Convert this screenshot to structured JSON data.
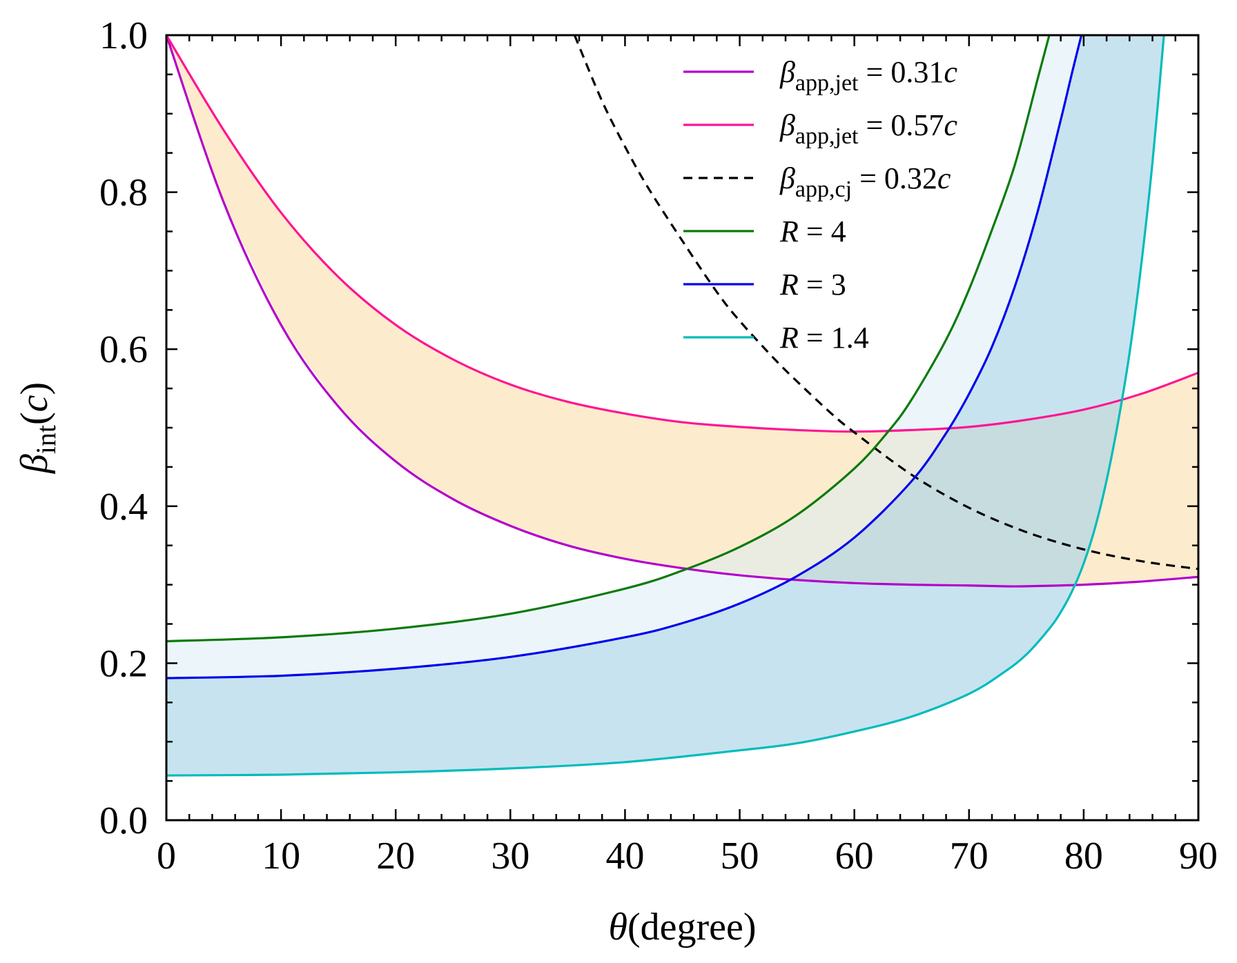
{
  "chart_data": {
    "type": "line",
    "title": "",
    "xlabel": {
      "symbol": "θ",
      "text": "(degree)"
    },
    "ylabel": {
      "symbol": "β",
      "sub": "int",
      "text": "(",
      "unit": "c",
      "close": ")"
    },
    "xlim": [
      0,
      90
    ],
    "ylim": [
      0,
      1.0
    ],
    "x_ticks": [
      "0",
      "10",
      "20",
      "30",
      "40",
      "50",
      "60",
      "70",
      "80",
      "90"
    ],
    "y_ticks": [
      "0.0",
      "0.2",
      "0.4",
      "0.6",
      "0.8",
      "1.0"
    ],
    "grid": false,
    "legend_position": "top-right",
    "series": [
      {
        "name": "β_app,jet = 0.31c",
        "legend": {
          "sym": "β",
          "sub": "app,jet",
          "eq": " = 0.31",
          "unit": "c"
        },
        "color": "#b300cc",
        "dash": "solid",
        "x": [
          0,
          5,
          10,
          15,
          20,
          25,
          30,
          35,
          40,
          45,
          50,
          55,
          60,
          65,
          70,
          73,
          75,
          80,
          85,
          90
        ],
        "y": [
          1.0,
          0.787,
          0.631,
          0.527,
          0.457,
          0.409,
          0.375,
          0.35,
          0.333,
          0.321,
          0.312,
          0.306,
          0.302,
          0.3,
          0.299,
          0.298,
          0.298,
          0.3,
          0.304,
          0.31
        ]
      },
      {
        "name": "β_app,jet = 0.57c",
        "legend": {
          "sym": "β",
          "sub": "app,jet",
          "eq": " = 0.57",
          "unit": "c"
        },
        "color": "#ff1493",
        "dash": "solid",
        "x": [
          0,
          5,
          10,
          15,
          20,
          25,
          30,
          35,
          40,
          45,
          50,
          55,
          60,
          65,
          70,
          75,
          80,
          85,
          90
        ],
        "y": [
          1.0,
          0.879,
          0.774,
          0.692,
          0.631,
          0.587,
          0.555,
          0.533,
          0.518,
          0.507,
          0.501,
          0.497,
          0.495,
          0.497,
          0.501,
          0.51,
          0.523,
          0.543,
          0.57
        ]
      },
      {
        "name": "β_app,cj = 0.32c",
        "legend": {
          "sym": "β",
          "sub": "app,cj",
          "eq": " = 0.32",
          "unit": "c"
        },
        "color": "#000000",
        "dash": "dashed",
        "x": [
          35.6,
          38,
          40,
          42,
          45,
          48,
          50,
          53,
          55,
          58,
          60,
          65,
          70,
          75,
          80,
          85,
          90
        ],
        "y": [
          1.0,
          0.916,
          0.858,
          0.806,
          0.738,
          0.673,
          0.636,
          0.588,
          0.559,
          0.518,
          0.494,
          0.44,
          0.398,
          0.367,
          0.345,
          0.33,
          0.32
        ]
      },
      {
        "name": "R = 4",
        "legend": {
          "sym": "R",
          "sub": "",
          "eq": " = 4",
          "unit": ""
        },
        "color": "#0a7a0a",
        "dash": "solid",
        "x": [
          0,
          10,
          20,
          30,
          40,
          45,
          50,
          55,
          60,
          63,
          65,
          68,
          70,
          72,
          74,
          76,
          77
        ],
        "y": [
          0.228,
          0.233,
          0.244,
          0.263,
          0.295,
          0.318,
          0.348,
          0.389,
          0.448,
          0.496,
          0.536,
          0.612,
          0.676,
          0.752,
          0.835,
          0.945,
          1.0
        ]
      },
      {
        "name": "R = 3",
        "legend": {
          "sym": "R",
          "sub": "",
          "eq": " = 3",
          "unit": ""
        },
        "color": "#0000ee",
        "dash": "solid",
        "x": [
          0,
          10,
          20,
          30,
          40,
          45,
          50,
          55,
          60,
          65,
          68,
          70,
          72,
          74,
          76,
          78,
          79,
          79.8
        ],
        "y": [
          0.181,
          0.184,
          0.193,
          0.208,
          0.233,
          0.251,
          0.276,
          0.311,
          0.36,
          0.432,
          0.493,
          0.543,
          0.603,
          0.68,
          0.776,
          0.892,
          0.953,
          1.0
        ]
      },
      {
        "name": "R = 1.4",
        "legend": {
          "sym": "R",
          "sub": "",
          "eq": " = 1.4",
          "unit": ""
        },
        "color": "#00bbbb",
        "dash": "solid",
        "x": [
          0,
          10,
          20,
          30,
          40,
          50,
          55,
          60,
          65,
          70,
          73,
          75,
          77,
          78,
          79,
          80,
          81,
          82,
          83,
          84,
          85,
          86,
          87
        ],
        "y": [
          0.057,
          0.058,
          0.061,
          0.066,
          0.074,
          0.089,
          0.098,
          0.113,
          0.132,
          0.161,
          0.188,
          0.211,
          0.244,
          0.265,
          0.292,
          0.327,
          0.373,
          0.433,
          0.507,
          0.595,
          0.705,
          0.838,
          1.0
        ]
      }
    ],
    "fills": [
      {
        "between": [
          "β_app,jet = 0.31c",
          "β_app,jet = 0.57c"
        ],
        "color": "#fde8c4",
        "opacity": 0.85
      },
      {
        "between": [
          "R = 4",
          "R = 3"
        ],
        "color": "#d9eef6",
        "opacity": 0.5
      },
      {
        "between": [
          "R = 3",
          "R = 1.4"
        ],
        "color": "#a9d4e6",
        "opacity": 0.65
      }
    ]
  }
}
